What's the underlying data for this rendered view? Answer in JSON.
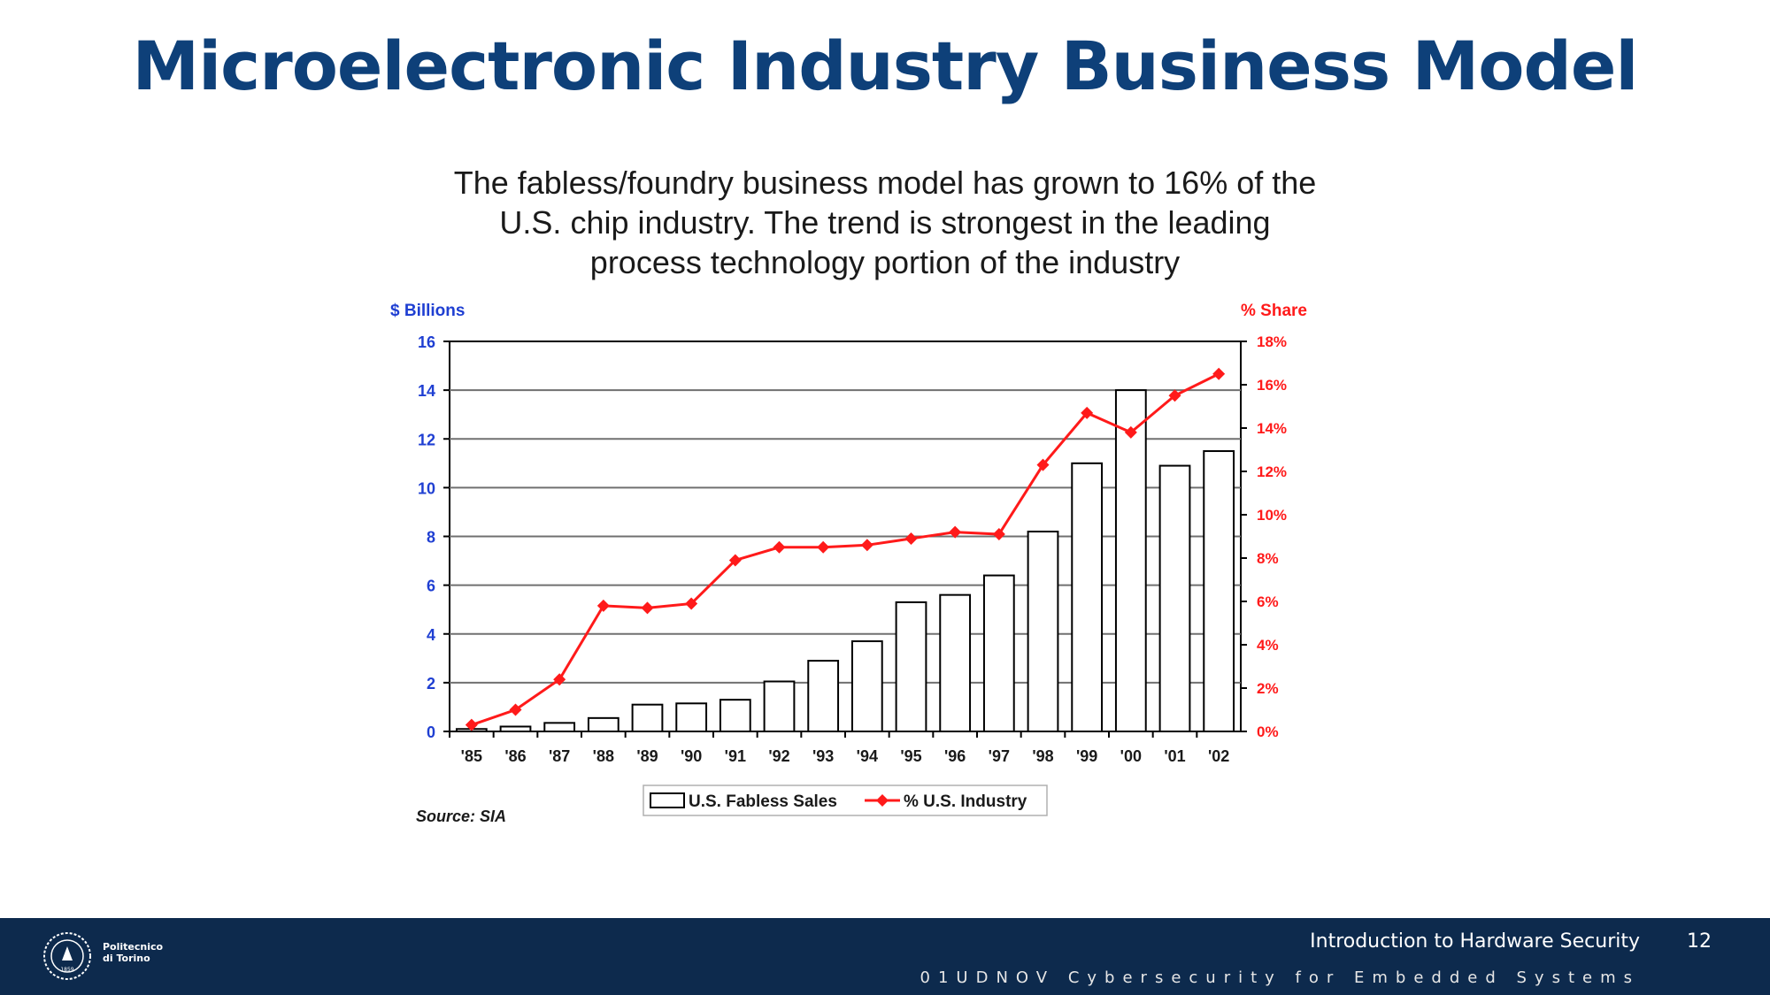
{
  "slide": {
    "title": "Microelectronic Industry Business Model"
  },
  "chart_data": {
    "type": "bar",
    "title": "The fabless/foundry business model has grown to 16% of the U.S. chip industry.  The trend is strongest in the leading process technology portion of the industry",
    "title_lines": [
      "The fabless/foundry business model has grown to 16% of the",
      "U.S. chip industry.  The trend is strongest in the leading",
      "process technology portion of the industry"
    ],
    "categories": [
      "'85",
      "'86",
      "'87",
      "'88",
      "'89",
      "'90",
      "'91",
      "'92",
      "'93",
      "'94",
      "'95",
      "'96",
      "'97",
      "'98",
      "'99",
      "'00",
      "'01",
      "'02"
    ],
    "y_left_label": "$ Billions",
    "y_right_label": "% Share",
    "y_left_ticks": [
      "0",
      "2",
      "4",
      "6",
      "8",
      "10",
      "12",
      "14",
      "16"
    ],
    "y_right_ticks": [
      "0%",
      "2%",
      "4%",
      "6%",
      "8%",
      "10%",
      "12%",
      "14%",
      "16%",
      "18%"
    ],
    "ylim_left": [
      0,
      16
    ],
    "ylim_right": [
      0,
      18
    ],
    "series": [
      {
        "name": "U.S. Fabless Sales",
        "type": "bar",
        "axis": "left",
        "values": [
          0.1,
          0.2,
          0.35,
          0.55,
          1.1,
          1.15,
          1.3,
          2.05,
          2.9,
          3.7,
          5.3,
          5.6,
          6.4,
          8.2,
          11.0,
          14.0,
          10.9,
          11.5
        ]
      },
      {
        "name": "% U.S. Industry",
        "type": "line",
        "axis": "right",
        "values": [
          0.3,
          1.0,
          2.4,
          5.8,
          5.7,
          5.9,
          7.9,
          8.5,
          8.5,
          8.6,
          8.9,
          9.2,
          9.1,
          12.3,
          14.7,
          13.8,
          15.5,
          16.5
        ]
      }
    ],
    "legend_position": "bottom",
    "grid": true,
    "source": "Source: SIA",
    "colors": {
      "left_axis": "#1f3fd2",
      "right_axis": "#ff1a1a",
      "bars": "#ffffff",
      "line": "#ff1a1a"
    }
  },
  "footer": {
    "course": "Introduction to Hardware Security",
    "page": "12",
    "subtitle": "01UDNOV Cybersecurity for Embedded Systems",
    "logo_lines": [
      "Politecnico",
      "di Torino"
    ],
    "logo_year": "1859"
  }
}
